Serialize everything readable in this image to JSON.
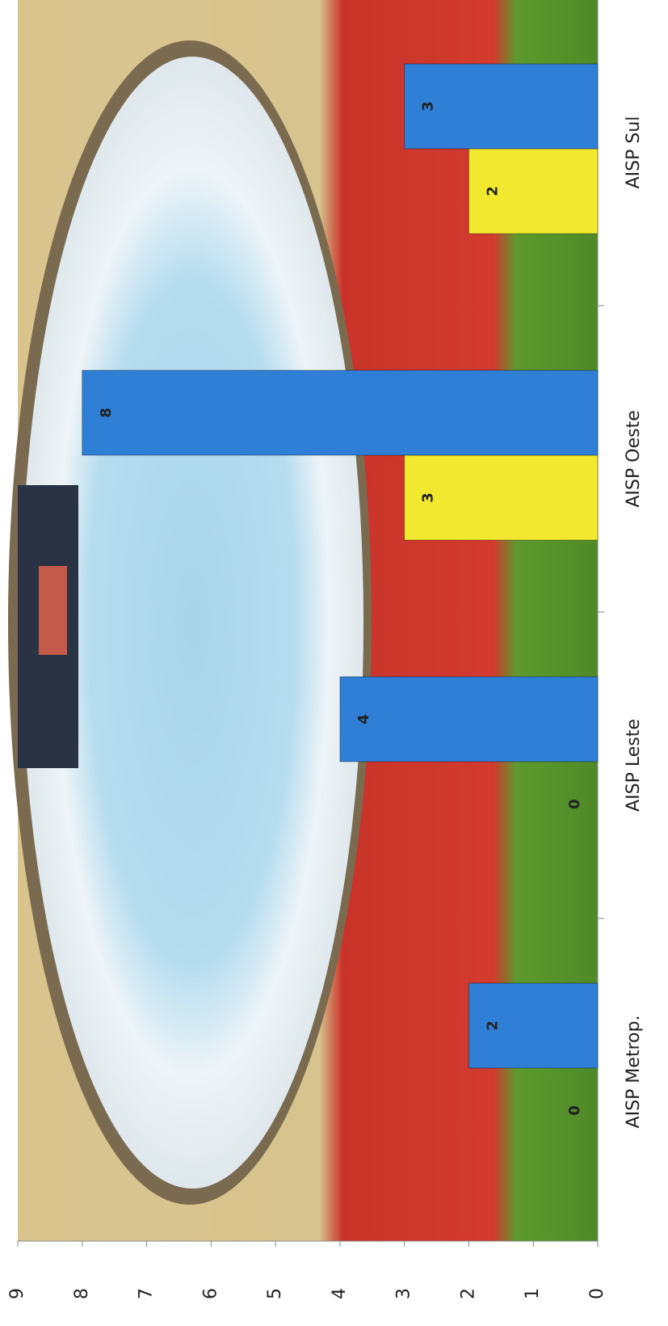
{
  "chart_data": {
    "type": "bar",
    "orientation": "rotated",
    "categories": [
      "AISP Metrop.",
      "AISP Leste",
      "AISP Oeste",
      "AISP Sul"
    ],
    "series": [
      {
        "color": "#f2e830",
        "values": [
          0,
          0,
          3,
          2
        ]
      },
      {
        "color": "#2f7fd6",
        "values": [
          2,
          4,
          8,
          3
        ]
      }
    ],
    "ylim": [
      0,
      9
    ],
    "yticks": [
      0,
      1,
      2,
      3,
      4,
      5,
      6,
      7,
      8,
      9
    ]
  }
}
